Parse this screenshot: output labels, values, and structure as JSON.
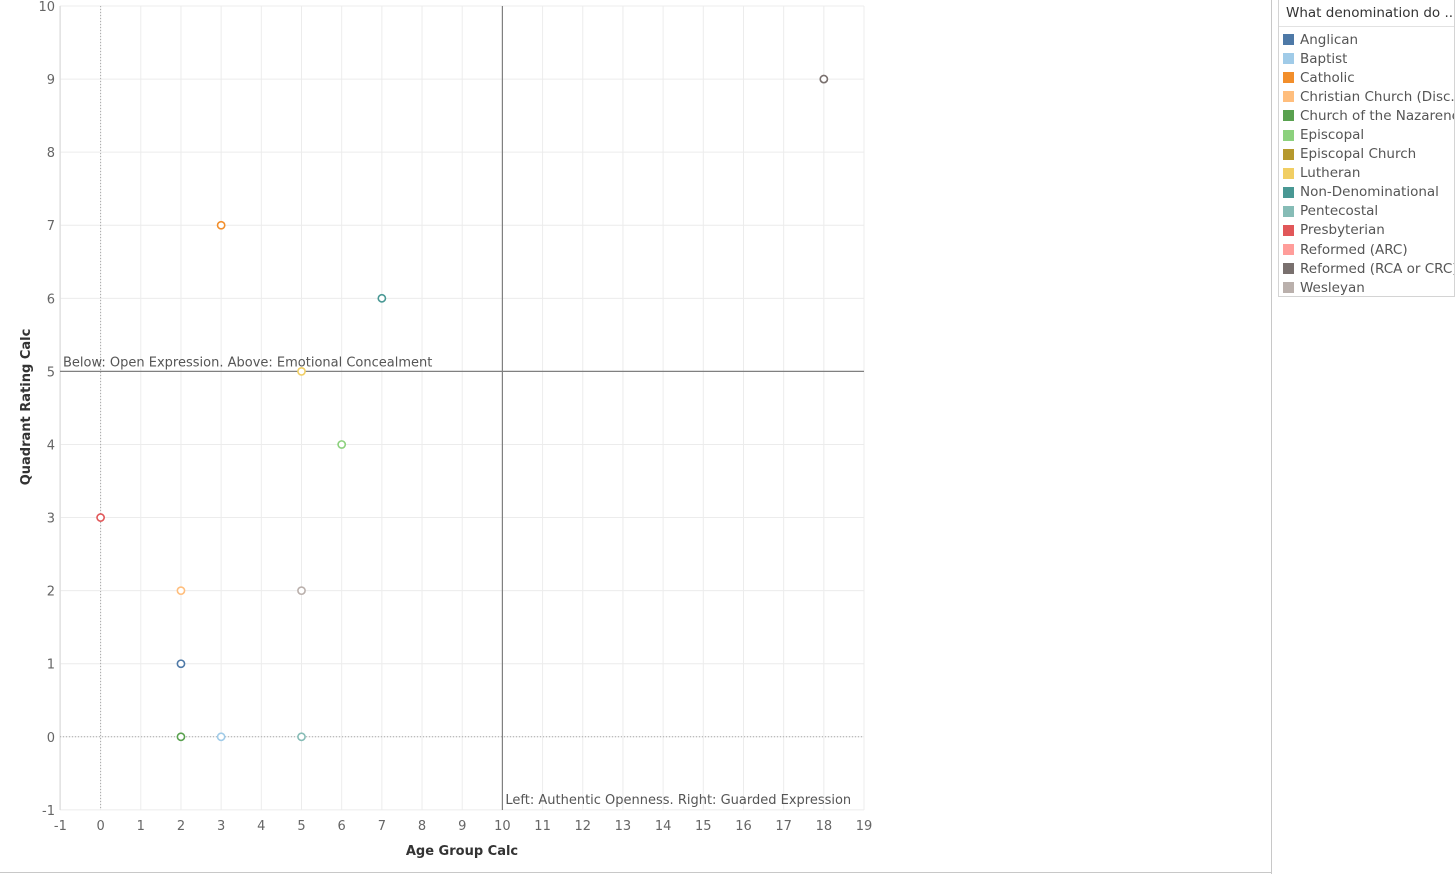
{
  "legend": {
    "title": "What denomination do ...",
    "items": [
      {
        "label": "Anglican",
        "color": "#4e79a7"
      },
      {
        "label": "Baptist",
        "color": "#a0cbe8"
      },
      {
        "label": "Catholic",
        "color": "#f28e2b"
      },
      {
        "label": "Christian Church (Disc..",
        "color": "#ffbe7d"
      },
      {
        "label": "Church of the Nazarene",
        "color": "#59a14f"
      },
      {
        "label": "Episcopal",
        "color": "#8cd17d"
      },
      {
        "label": "Episcopal Church",
        "color": "#b6992d"
      },
      {
        "label": "Lutheran",
        "color": "#f1ce63"
      },
      {
        "label": "Non-Denominational",
        "color": "#499894"
      },
      {
        "label": "Pentecostal",
        "color": "#86bcb6"
      },
      {
        "label": "Presbyterian",
        "color": "#e15759"
      },
      {
        "label": "Reformed (ARC)",
        "color": "#ff9d9a"
      },
      {
        "label": "Reformed (RCA or CRC)",
        "color": "#79706e"
      },
      {
        "label": "Wesleyan",
        "color": "#bab0ac"
      }
    ]
  },
  "chart_data": {
    "type": "scatter",
    "title": "",
    "xlabel": "Age Group Calc",
    "ylabel": "Quadrant Rating Calc",
    "xlim": [
      -1,
      19
    ],
    "ylim": [
      -1,
      10
    ],
    "xticks": [
      "-1",
      "0",
      "1",
      "2",
      "3",
      "4",
      "5",
      "6",
      "7",
      "8",
      "9",
      "10",
      "11",
      "12",
      "13",
      "14",
      "15",
      "16",
      "17",
      "18",
      "19"
    ],
    "yticks": [
      "-1",
      "0",
      "1",
      "2",
      "3",
      "4",
      "5",
      "6",
      "7",
      "8",
      "9",
      "10"
    ],
    "grid": true,
    "legend_position": "right",
    "reference_lines": [
      {
        "axis": "y",
        "value": 5,
        "label": "Below: Open Expression. Above: Emotional Concealment"
      },
      {
        "axis": "x",
        "value": 10,
        "label": "Left: Authentic Openness. Right: Guarded Expression"
      }
    ],
    "points": [
      {
        "series": "Anglican",
        "x": 2,
        "y": 1
      },
      {
        "series": "Baptist",
        "x": 3,
        "y": 0
      },
      {
        "series": "Catholic",
        "x": 3,
        "y": 7
      },
      {
        "series": "Christian Church (Disc..",
        "x": 2,
        "y": 2
      },
      {
        "series": "Church of the Nazarene",
        "x": 2,
        "y": 0
      },
      {
        "series": "Episcopal",
        "x": 6,
        "y": 4
      },
      {
        "series": "Lutheran",
        "x": 5,
        "y": 5
      },
      {
        "series": "Non-Denominational",
        "x": 7,
        "y": 6
      },
      {
        "series": "Pentecostal",
        "x": 5,
        "y": 0
      },
      {
        "series": "Presbyterian",
        "x": 0,
        "y": 3
      },
      {
        "series": "Reformed (RCA or CRC)",
        "x": 18,
        "y": 9
      },
      {
        "series": "Wesleyan",
        "x": 5,
        "y": 2
      }
    ]
  }
}
